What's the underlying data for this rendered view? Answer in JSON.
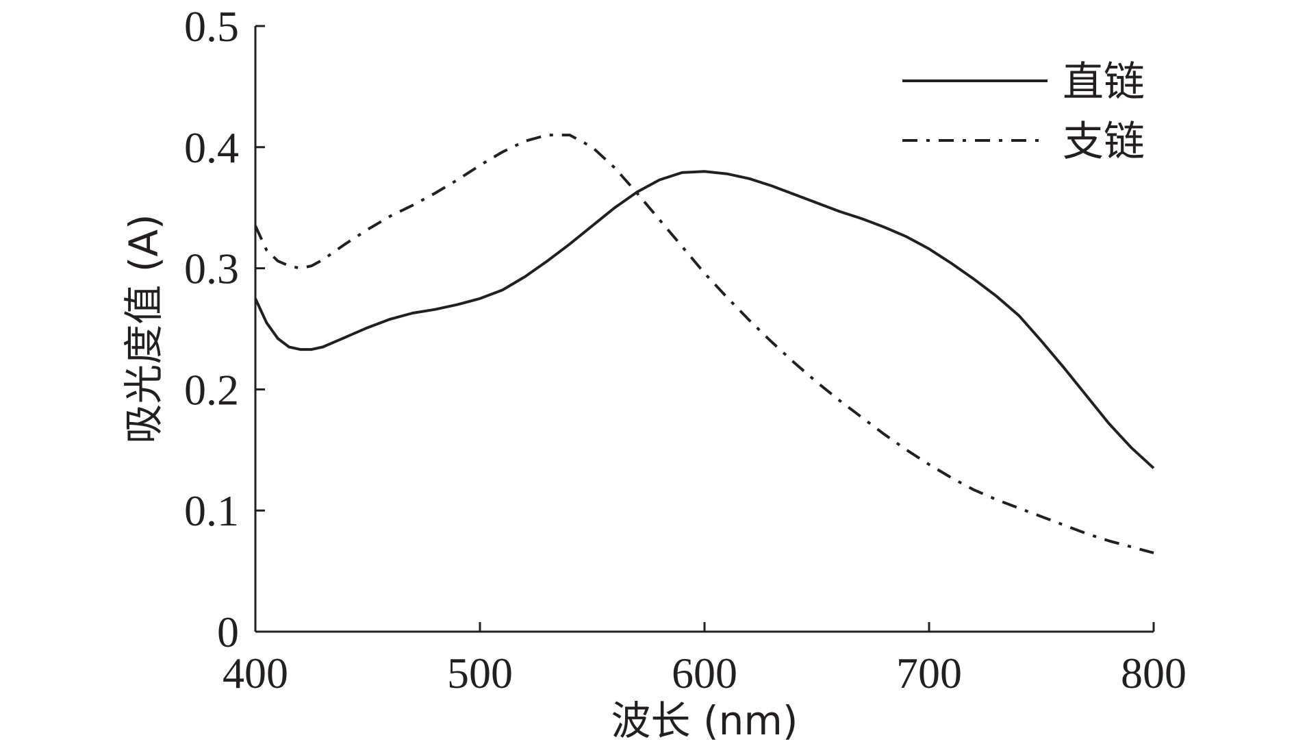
{
  "chart_data": {
    "type": "line",
    "xlabel": "波长 (nm)",
    "ylabel": "吸光度值 (A)",
    "xlim": [
      400,
      800
    ],
    "ylim": [
      0,
      0.5
    ],
    "x_ticks": [
      400,
      500,
      600,
      700,
      800
    ],
    "x_tick_labels": [
      "400",
      "500",
      "600",
      "700",
      "800"
    ],
    "y_ticks": [
      0,
      0.1,
      0.2,
      0.3,
      0.4,
      0.5
    ],
    "y_tick_labels": [
      "0",
      "0.1",
      "0.2",
      "0.3",
      "0.4",
      "0.5"
    ],
    "grid": false,
    "legend_position": "top-right",
    "series": [
      {
        "name": "直链",
        "style": "solid",
        "color": "#231f20",
        "x": [
          400,
          405,
          410,
          415,
          420,
          425,
          430,
          440,
          450,
          460,
          470,
          480,
          490,
          500,
          510,
          520,
          530,
          540,
          550,
          560,
          570,
          580,
          590,
          600,
          610,
          620,
          630,
          640,
          650,
          660,
          670,
          680,
          690,
          700,
          710,
          720,
          730,
          740,
          750,
          760,
          770,
          780,
          790,
          800
        ],
        "values": [
          0.275,
          0.255,
          0.242,
          0.235,
          0.233,
          0.233,
          0.235,
          0.243,
          0.251,
          0.258,
          0.263,
          0.266,
          0.27,
          0.275,
          0.282,
          0.293,
          0.306,
          0.32,
          0.335,
          0.35,
          0.363,
          0.373,
          0.379,
          0.38,
          0.378,
          0.374,
          0.368,
          0.361,
          0.354,
          0.347,
          0.341,
          0.334,
          0.326,
          0.316,
          0.304,
          0.291,
          0.277,
          0.261,
          0.24,
          0.218,
          0.195,
          0.172,
          0.152,
          0.135
        ]
      },
      {
        "name": "支链",
        "style": "dashdot",
        "color": "#231f20",
        "x": [
          400,
          405,
          410,
          415,
          420,
          425,
          430,
          440,
          450,
          460,
          470,
          480,
          490,
          500,
          510,
          520,
          530,
          540,
          550,
          560,
          570,
          580,
          590,
          600,
          610,
          620,
          630,
          640,
          650,
          660,
          670,
          680,
          690,
          700,
          710,
          720,
          730,
          740,
          750,
          760,
          770,
          780,
          790,
          800
        ],
        "values": [
          0.335,
          0.315,
          0.306,
          0.302,
          0.3,
          0.302,
          0.307,
          0.32,
          0.332,
          0.343,
          0.352,
          0.362,
          0.373,
          0.385,
          0.396,
          0.405,
          0.41,
          0.41,
          0.4,
          0.383,
          0.362,
          0.34,
          0.318,
          0.296,
          0.276,
          0.257,
          0.239,
          0.222,
          0.206,
          0.191,
          0.177,
          0.163,
          0.15,
          0.138,
          0.127,
          0.117,
          0.109,
          0.102,
          0.095,
          0.088,
          0.081,
          0.075,
          0.07,
          0.065
        ]
      }
    ]
  }
}
